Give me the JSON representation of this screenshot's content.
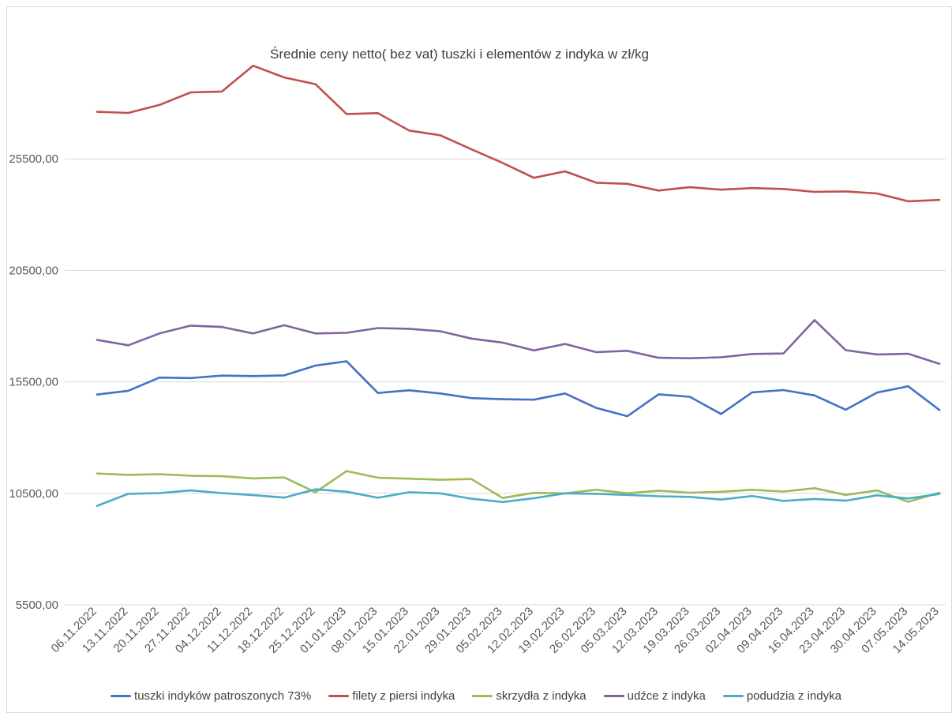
{
  "chart_data": {
    "type": "line",
    "title": "Średnie ceny netto( bez vat) tuszki i elementów z indyka w zł/kg",
    "xlabel": "",
    "ylabel": "",
    "ylim": [
      5500,
      30500
    ],
    "yticks": [
      5500,
      10500,
      15500,
      20500,
      25500
    ],
    "ytick_labels": [
      "5500,00",
      "10500,00",
      "15500,00",
      "20500,00",
      "25500,00"
    ],
    "grid": true,
    "legend_position": "bottom",
    "categories": [
      "06.11.2022",
      "13.11.2022",
      "20.11.2022",
      "27.11.2022",
      "04.12.2022",
      "11.12.2022",
      "18.12.2022",
      "25.12.2022",
      "01.01.2023",
      "08.01.2023",
      "15.01.2023",
      "22.01.2023",
      "29.01.2023",
      "05.02.2023",
      "12.02.2023",
      "19.02.2023",
      "26.02.2023",
      "05.03.2023",
      "12.03.2023",
      "19.03.2023",
      "26.03.2023",
      "02.04.2023",
      "09.04.2023",
      "16.04.2023",
      "23.04.2023",
      "30.04.2023",
      "07.05.2023",
      "14.05.2023"
    ],
    "series": [
      {
        "name": "tuszki indyków patroszonych 73%",
        "color": "#4472c4",
        "values": [
          14930,
          15100,
          15690,
          15670,
          15780,
          15760,
          15790,
          16230,
          16420,
          15000,
          15120,
          14980,
          14770,
          14720,
          14700,
          14980,
          14330,
          13960,
          14940,
          14830,
          14060,
          15030,
          15130,
          14890,
          14250,
          15020,
          15300,
          14240
        ]
      },
      {
        "name": "filety z piersi indyka",
        "color": "#c0504d",
        "values": [
          27610,
          27560,
          27920,
          28480,
          28520,
          29680,
          29150,
          28850,
          27510,
          27550,
          26770,
          26560,
          25930,
          25320,
          24650,
          24940,
          24430,
          24380,
          24080,
          24230,
          24120,
          24190,
          24150,
          24020,
          24040,
          23950,
          23600,
          23660
        ]
      },
      {
        "name": "skrzydła z indyka",
        "color": "#9bbb59",
        "values": [
          11390,
          11330,
          11360,
          11290,
          11270,
          11170,
          11210,
          10550,
          11500,
          11200,
          11160,
          11110,
          11140,
          10290,
          10520,
          10500,
          10660,
          10500,
          10620,
          10530,
          10570,
          10660,
          10580,
          10730,
          10430,
          10630,
          10120,
          10530
        ]
      },
      {
        "name": "udźce z indyka",
        "color": "#8064a2",
        "values": [
          17380,
          17140,
          17670,
          18020,
          17960,
          17670,
          18040,
          17670,
          17700,
          17910,
          17880,
          17770,
          17440,
          17260,
          16910,
          17200,
          16830,
          16890,
          16580,
          16560,
          16600,
          16750,
          16770,
          18270,
          16920,
          16730,
          16760,
          16310
        ]
      },
      {
        "name": "podudzia z indyka",
        "color": "#4bacc6",
        "values": [
          9940,
          10480,
          10510,
          10630,
          10510,
          10420,
          10310,
          10680,
          10570,
          10300,
          10550,
          10500,
          10260,
          10110,
          10280,
          10500,
          10480,
          10430,
          10370,
          10340,
          10220,
          10380,
          10160,
          10250,
          10170,
          10410,
          10270,
          10470
        ]
      }
    ]
  }
}
